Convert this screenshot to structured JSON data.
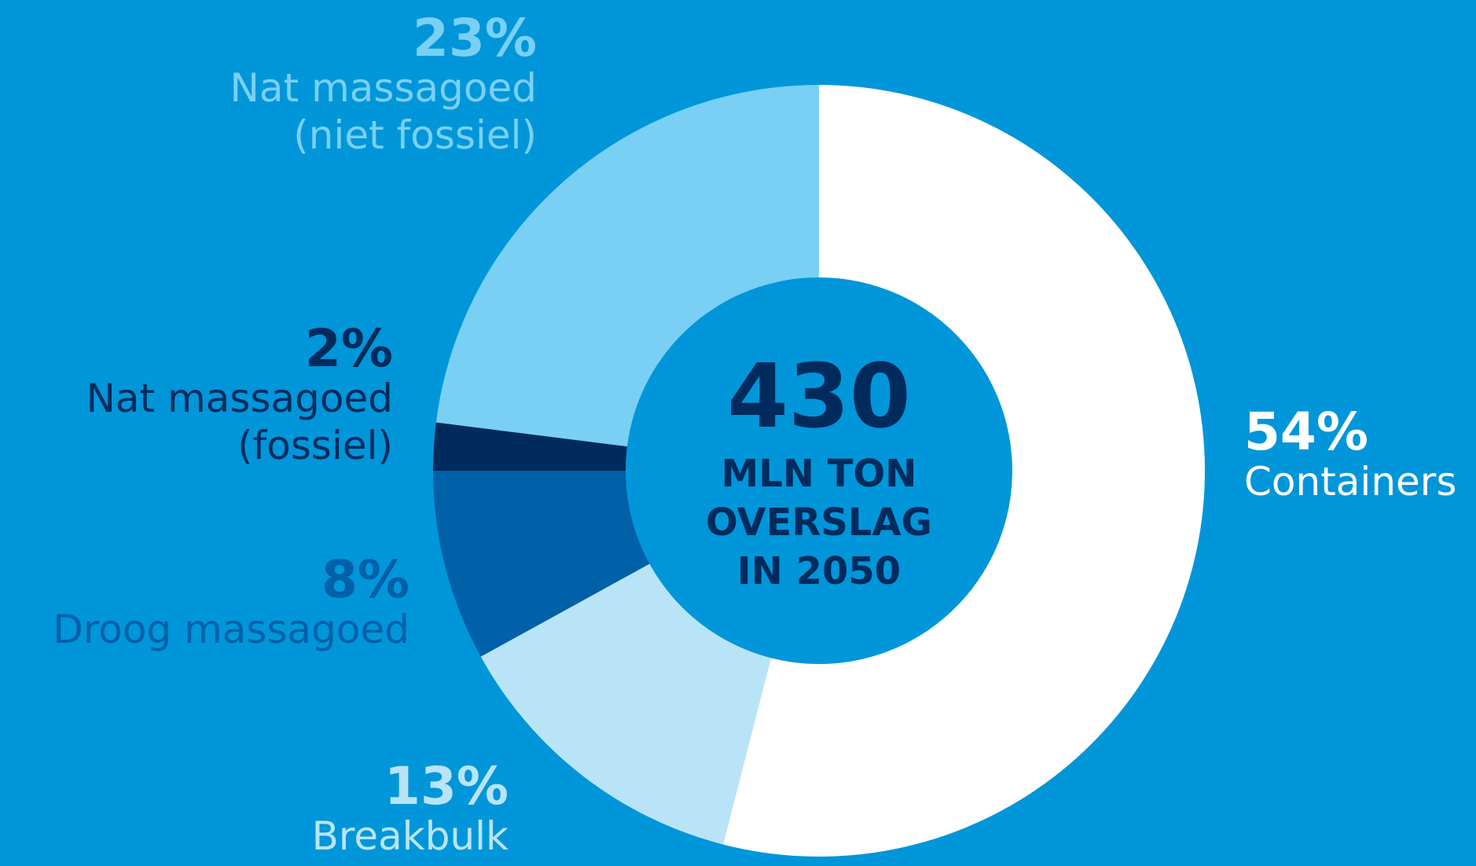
{
  "chart_data": {
    "type": "donut",
    "categories": [
      "Containers",
      "Breakbulk",
      "Droog massagoed",
      "Nat massagoed\n(fossiel)",
      "Nat massagoed\n(niet fossiel)"
    ],
    "values": [
      54,
      13,
      8,
      2,
      23
    ],
    "value_labels": [
      "54%",
      "13%",
      "8%",
      "2%",
      "23%"
    ],
    "colors": [
      "#ffffff",
      "#b9e4f7",
      "#0060a8",
      "#002b5c",
      "#79d0f4"
    ],
    "center_value": "430",
    "center_label": "MLN TON\nOVERSLAG\nIN 2050"
  }
}
